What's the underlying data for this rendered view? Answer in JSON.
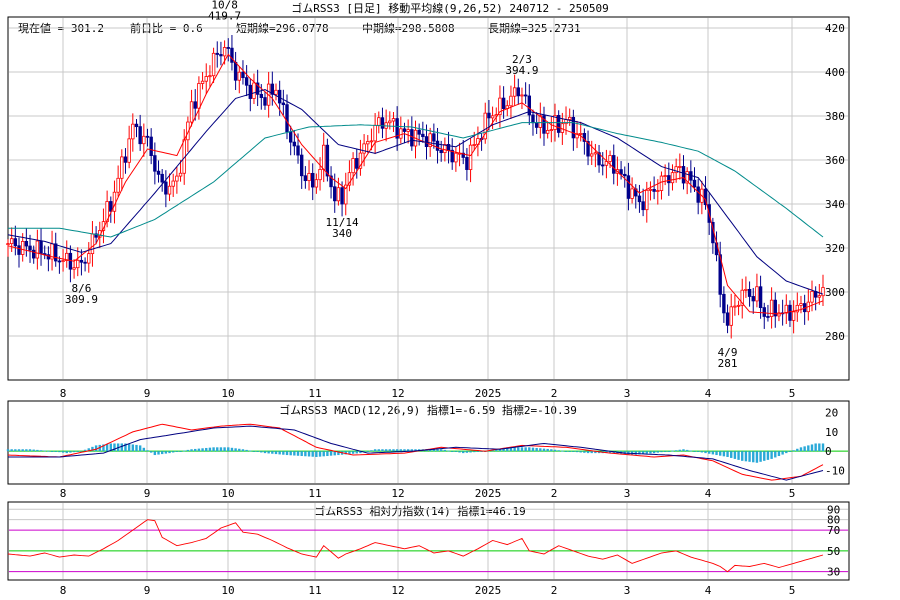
{
  "chart_data": [
    {
      "type": "candlestick",
      "title": "ゴムRSS3 [日足] 移動平均線(9,26,52) 240712 - 250509",
      "info": {
        "current": "現在値 = 301.2",
        "change": "前日比 = 0.6",
        "short": "短期線=296.0778",
        "mid": "中期線=298.5808",
        "long": "長期線=325.2731",
        "range": "240712 - 250509"
      },
      "ylim": [
        260,
        425
      ],
      "y_ticks": [
        420,
        400,
        380,
        360,
        340,
        320,
        300,
        280
      ],
      "x_ticks": [
        "8",
        "9",
        "10",
        "11",
        "12",
        "2025",
        "2",
        "3",
        "4",
        "5"
      ],
      "annotations": [
        {
          "date": "10/8",
          "value": "419.7",
          "price": 419.7
        },
        {
          "date": "8/6",
          "value": "309.9",
          "price": 309.9
        },
        {
          "date": "11/14",
          "value": "340",
          "price": 340
        },
        {
          "date": "2/3",
          "value": "394.9",
          "price": 394.9
        },
        {
          "date": "4/9",
          "value": "281",
          "price": 281
        }
      ],
      "close_path": [
        [
          0,
          322
        ],
        [
          12,
          317
        ],
        [
          17,
          313
        ],
        [
          20,
          312
        ],
        [
          28,
          340
        ],
        [
          34,
          375
        ],
        [
          38,
          368
        ],
        [
          42,
          347
        ],
        [
          46,
          350
        ],
        [
          50,
          385
        ],
        [
          56,
          405
        ],
        [
          59,
          412
        ],
        [
          62,
          400
        ],
        [
          66,
          392
        ],
        [
          70,
          388
        ],
        [
          73,
          393
        ],
        [
          76,
          375
        ],
        [
          80,
          355
        ],
        [
          83,
          348
        ],
        [
          86,
          362
        ],
        [
          89,
          342
        ],
        [
          91,
          344
        ],
        [
          94,
          358
        ],
        [
          97,
          365
        ],
        [
          100,
          375
        ],
        [
          103,
          378
        ],
        [
          108,
          372
        ],
        [
          114,
          370
        ],
        [
          118,
          365
        ],
        [
          122,
          362
        ],
        [
          125,
          360
        ],
        [
          128,
          370
        ],
        [
          131,
          380
        ],
        [
          135,
          385
        ],
        [
          138,
          390
        ],
        [
          140,
          392
        ],
        [
          142,
          380
        ],
        [
          146,
          374
        ],
        [
          150,
          376
        ],
        [
          152,
          378
        ],
        [
          156,
          370
        ],
        [
          160,
          360
        ],
        [
          165,
          358
        ],
        [
          168,
          350
        ],
        [
          172,
          340
        ],
        [
          176,
          347
        ],
        [
          180,
          353
        ],
        [
          183,
          356
        ],
        [
          186,
          350
        ],
        [
          190,
          340
        ],
        [
          192,
          325
        ],
        [
          194,
          300
        ],
        [
          196,
          285
        ],
        [
          198,
          295
        ],
        [
          201,
          300
        ],
        [
          204,
          298
        ],
        [
          206,
          290
        ],
        [
          209,
          292
        ],
        [
          212,
          290
        ],
        [
          216,
          293
        ],
        [
          219,
          297
        ],
        [
          222,
          302
        ]
      ],
      "series": [
        {
          "name": "短期線",
          "color": "#ff0000",
          "path": [
            [
              0,
              321
            ],
            [
              12,
              316
            ],
            [
              18,
              314
            ],
            [
              24,
              322
            ],
            [
              32,
              350
            ],
            [
              38,
              365
            ],
            [
              46,
              362
            ],
            [
              54,
              390
            ],
            [
              60,
              408
            ],
            [
              66,
              397
            ],
            [
              72,
              388
            ],
            [
              80,
              367
            ],
            [
              88,
              352
            ],
            [
              92,
              347
            ],
            [
              100,
              368
            ],
            [
              108,
              372
            ],
            [
              118,
              365
            ],
            [
              126,
              362
            ],
            [
              134,
              382
            ],
            [
              140,
              386
            ],
            [
              148,
              376
            ],
            [
              156,
              371
            ],
            [
              164,
              358
            ],
            [
              172,
              345
            ],
            [
              178,
              350
            ],
            [
              184,
              352
            ],
            [
              190,
              342
            ],
            [
              196,
              303
            ],
            [
              202,
              291
            ],
            [
              210,
              290
            ],
            [
              216,
              292
            ],
            [
              222,
              296
            ]
          ]
        },
        {
          "name": "中期線",
          "color": "#000080",
          "path": [
            [
              0,
              326
            ],
            [
              10,
              323
            ],
            [
              20,
              318
            ],
            [
              28,
              322
            ],
            [
              40,
              345
            ],
            [
              54,
              373
            ],
            [
              62,
              388
            ],
            [
              70,
              392
            ],
            [
              80,
              383
            ],
            [
              90,
              367
            ],
            [
              100,
              363
            ],
            [
              110,
              369
            ],
            [
              122,
              366
            ],
            [
              132,
              376
            ],
            [
              142,
              382
            ],
            [
              156,
              377
            ],
            [
              166,
              370
            ],
            [
              178,
              357
            ],
            [
              188,
              352
            ],
            [
              196,
              334
            ],
            [
              204,
              316
            ],
            [
              212,
              305
            ],
            [
              222,
              299
            ]
          ]
        },
        {
          "name": "長期線",
          "color": "#008b8b",
          "path": [
            [
              0,
              329
            ],
            [
              14,
              329
            ],
            [
              28,
              325
            ],
            [
              40,
              333
            ],
            [
              56,
              350
            ],
            [
              70,
              370
            ],
            [
              82,
              375
            ],
            [
              96,
              376
            ],
            [
              110,
              375
            ],
            [
              124,
              370
            ],
            [
              140,
              377
            ],
            [
              154,
              377
            ],
            [
              166,
              372
            ],
            [
              178,
              368
            ],
            [
              188,
              364
            ],
            [
              198,
              355
            ],
            [
              212,
              338
            ],
            [
              222,
              325
            ]
          ]
        }
      ]
    },
    {
      "type": "line",
      "title": "ゴムRSS3 MACD(12,26,9) 指標1=-6.59 指標2=-10.39",
      "ylim": [
        -17,
        26
      ],
      "y_ticks": [
        20,
        10,
        0,
        -10
      ],
      "x_ticks": [
        "8",
        "9",
        "10",
        "11",
        "12",
        "2025",
        "2",
        "3",
        "4",
        "5"
      ],
      "series": [
        {
          "name": "指標1",
          "color": "#ff0000",
          "path": [
            [
              0,
              -2
            ],
            [
              14,
              -3
            ],
            [
              24,
              1
            ],
            [
              34,
              10
            ],
            [
              42,
              14
            ],
            [
              50,
              11
            ],
            [
              58,
              13
            ],
            [
              66,
              14
            ],
            [
              74,
              12
            ],
            [
              84,
              2
            ],
            [
              94,
              -2
            ],
            [
              108,
              -1
            ],
            [
              118,
              2
            ],
            [
              130,
              0
            ],
            [
              140,
              3
            ],
            [
              152,
              2
            ],
            [
              164,
              -1
            ],
            [
              176,
              -3
            ],
            [
              184,
              -2
            ],
            [
              192,
              -5
            ],
            [
              200,
              -12
            ],
            [
              208,
              -15
            ],
            [
              216,
              -13
            ],
            [
              222,
              -7
            ]
          ]
        },
        {
          "name": "指標2",
          "color": "#000080",
          "path": [
            [
              0,
              -3
            ],
            [
              14,
              -3
            ],
            [
              26,
              -1
            ],
            [
              36,
              6
            ],
            [
              46,
              9
            ],
            [
              56,
              12
            ],
            [
              66,
              13
            ],
            [
              78,
              11
            ],
            [
              88,
              4
            ],
            [
              98,
              -1
            ],
            [
              110,
              0
            ],
            [
              122,
              2
            ],
            [
              134,
              1
            ],
            [
              146,
              4
            ],
            [
              156,
              2
            ],
            [
              168,
              -1
            ],
            [
              180,
              -2
            ],
            [
              192,
              -4
            ],
            [
              202,
              -10
            ],
            [
              212,
              -15
            ],
            [
              222,
              -10
            ]
          ]
        }
      ],
      "histogram": [
        [
          0,
          1
        ],
        [
          6,
          1
        ],
        [
          12,
          0
        ],
        [
          16,
          -1
        ],
        [
          20,
          0
        ],
        [
          24,
          3
        ],
        [
          28,
          4
        ],
        [
          32,
          4
        ],
        [
          36,
          3
        ],
        [
          40,
          -2
        ],
        [
          44,
          -1
        ],
        [
          50,
          1
        ],
        [
          56,
          2
        ],
        [
          60,
          2
        ],
        [
          64,
          1
        ],
        [
          70,
          -1
        ],
        [
          76,
          -2
        ],
        [
          84,
          -3
        ],
        [
          90,
          -2
        ],
        [
          96,
          -1
        ],
        [
          100,
          1
        ],
        [
          106,
          1
        ],
        [
          112,
          1
        ],
        [
          118,
          1
        ],
        [
          124,
          -1
        ],
        [
          130,
          0
        ],
        [
          136,
          2
        ],
        [
          142,
          2
        ],
        [
          148,
          1
        ],
        [
          152,
          0
        ],
        [
          158,
          -1
        ],
        [
          164,
          -1
        ],
        [
          170,
          -2
        ],
        [
          176,
          -1
        ],
        [
          184,
          1
        ],
        [
          190,
          -1
        ],
        [
          196,
          -3
        ],
        [
          200,
          -5
        ],
        [
          204,
          -6
        ],
        [
          208,
          -4
        ],
        [
          212,
          -1
        ],
        [
          216,
          2
        ],
        [
          220,
          4
        ]
      ]
    },
    {
      "type": "line",
      "title": "ゴムRSS3 相対力指数(14) 指標1=46.19",
      "ylim": [
        22,
        97
      ],
      "y_ticks": [
        90,
        80,
        70,
        50,
        30
      ],
      "reference_lines": [
        {
          "value": 70,
          "color": "#cc00cc"
        },
        {
          "value": 50,
          "color": "#00cc00"
        },
        {
          "value": 30,
          "color": "#cc00cc"
        }
      ],
      "x_ticks": [
        "8",
        "9",
        "10",
        "11",
        "12",
        "2025",
        "2",
        "3",
        "4",
        "5"
      ],
      "series": [
        {
          "name": "指標1",
          "color": "#ff0000",
          "path": [
            [
              0,
              47
            ],
            [
              6,
              45
            ],
            [
              10,
              48
            ],
            [
              14,
              44
            ],
            [
              18,
              46
            ],
            [
              22,
              45
            ],
            [
              26,
              52
            ],
            [
              30,
              60
            ],
            [
              34,
              70
            ],
            [
              38,
              80
            ],
            [
              40,
              79
            ],
            [
              42,
              63
            ],
            [
              46,
              55
            ],
            [
              50,
              58
            ],
            [
              54,
              62
            ],
            [
              58,
              72
            ],
            [
              62,
              77
            ],
            [
              64,
              68
            ],
            [
              68,
              66
            ],
            [
              72,
              60
            ],
            [
              76,
              53
            ],
            [
              80,
              47
            ],
            [
              84,
              44
            ],
            [
              86,
              55
            ],
            [
              90,
              43
            ],
            [
              92,
              47
            ],
            [
              96,
              52
            ],
            [
              100,
              58
            ],
            [
              104,
              55
            ],
            [
              108,
              52
            ],
            [
              112,
              55
            ],
            [
              116,
              48
            ],
            [
              120,
              50
            ],
            [
              124,
              45
            ],
            [
              128,
              52
            ],
            [
              132,
              60
            ],
            [
              136,
              56
            ],
            [
              140,
              62
            ],
            [
              142,
              50
            ],
            [
              146,
              47
            ],
            [
              150,
              55
            ],
            [
              154,
              50
            ],
            [
              158,
              45
            ],
            [
              162,
              42
            ],
            [
              166,
              46
            ],
            [
              170,
              38
            ],
            [
              174,
              43
            ],
            [
              178,
              48
            ],
            [
              182,
              50
            ],
            [
              186,
              44
            ],
            [
              190,
              40
            ],
            [
              192,
              38
            ],
            [
              194,
              35
            ],
            [
              196,
              30
            ],
            [
              198,
              36
            ],
            [
              202,
              35
            ],
            [
              206,
              38
            ],
            [
              210,
              34
            ],
            [
              214,
              38
            ],
            [
              218,
              42
            ],
            [
              222,
              46
            ]
          ]
        }
      ]
    }
  ]
}
